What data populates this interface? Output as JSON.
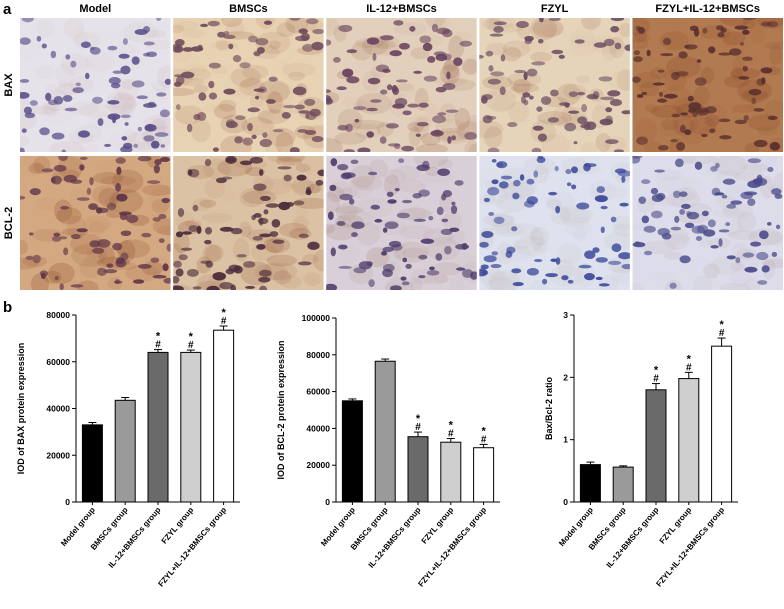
{
  "panel_labels": [
    "a",
    "b"
  ],
  "image_grid": {
    "columns": [
      "Model",
      "BMSCs",
      "IL-12+BMSCs",
      "FZYL",
      "FZYL+IL-12+BMSCs"
    ],
    "rows": [
      "BAX",
      "BCL-2"
    ]
  },
  "chart_data": [
    {
      "type": "bar",
      "y_label": "IOD of BAX  protein expression",
      "categories": [
        "Model group",
        "BMSCs group",
        "IL-12+BMSCs group",
        "FZYL group",
        "FZYL+IL-12+BMSCs group"
      ],
      "values": [
        33000,
        43500,
        64000,
        64000,
        73500
      ],
      "errors": [
        1000,
        1200,
        1200,
        1000,
        1800
      ],
      "colors": [
        "#000000",
        "#9a9a9a",
        "#6a6a6a",
        "#cfcfcf",
        "#ffffff"
      ],
      "sig_vs_model": [
        null,
        null,
        "*",
        "*",
        "*"
      ],
      "sig_vs_bmscs": [
        null,
        null,
        "#",
        "#",
        "#"
      ],
      "ylim": [
        0,
        80000
      ],
      "yticks": [
        0,
        20000,
        40000,
        60000,
        80000
      ]
    },
    {
      "type": "bar",
      "y_label": "IOD of BCL-2  protein expression",
      "categories": [
        "Model group",
        "BMSCs group",
        "IL-12+BMSCs group",
        "FZYL group",
        "FZYL+IL-12+BMSCs group"
      ],
      "values": [
        55000,
        76500,
        35500,
        32500,
        29500
      ],
      "errors": [
        1000,
        1200,
        2500,
        2000,
        1800
      ],
      "colors": [
        "#000000",
        "#9a9a9a",
        "#6a6a6a",
        "#cfcfcf",
        "#ffffff"
      ],
      "sig_vs_model": [
        null,
        null,
        "*",
        "*",
        "*"
      ],
      "sig_vs_bmscs": [
        null,
        null,
        "#",
        "#",
        "#"
      ],
      "ylim": [
        0,
        100000
      ],
      "yticks": [
        0,
        20000,
        40000,
        60000,
        80000,
        100000
      ]
    },
    {
      "type": "bar",
      "y_label": "Bax/Bcl-2 ratio",
      "categories": [
        "Model group",
        "BMSCs group",
        "IL-12+BMSCs group",
        "FZYL group",
        "FZYL+IL-12+BMSCs group"
      ],
      "values": [
        0.6,
        0.56,
        1.8,
        1.98,
        2.5
      ],
      "errors": [
        0.04,
        0.02,
        0.1,
        0.1,
        0.13
      ],
      "colors": [
        "#000000",
        "#9a9a9a",
        "#6a6a6a",
        "#cfcfcf",
        "#ffffff"
      ],
      "sig_vs_model": [
        null,
        null,
        "*",
        "*",
        "*"
      ],
      "sig_vs_bmscs": [
        null,
        null,
        "#",
        "#",
        "#"
      ],
      "ylim": [
        0,
        3
      ],
      "yticks": [
        0,
        1,
        2,
        3
      ]
    }
  ]
}
